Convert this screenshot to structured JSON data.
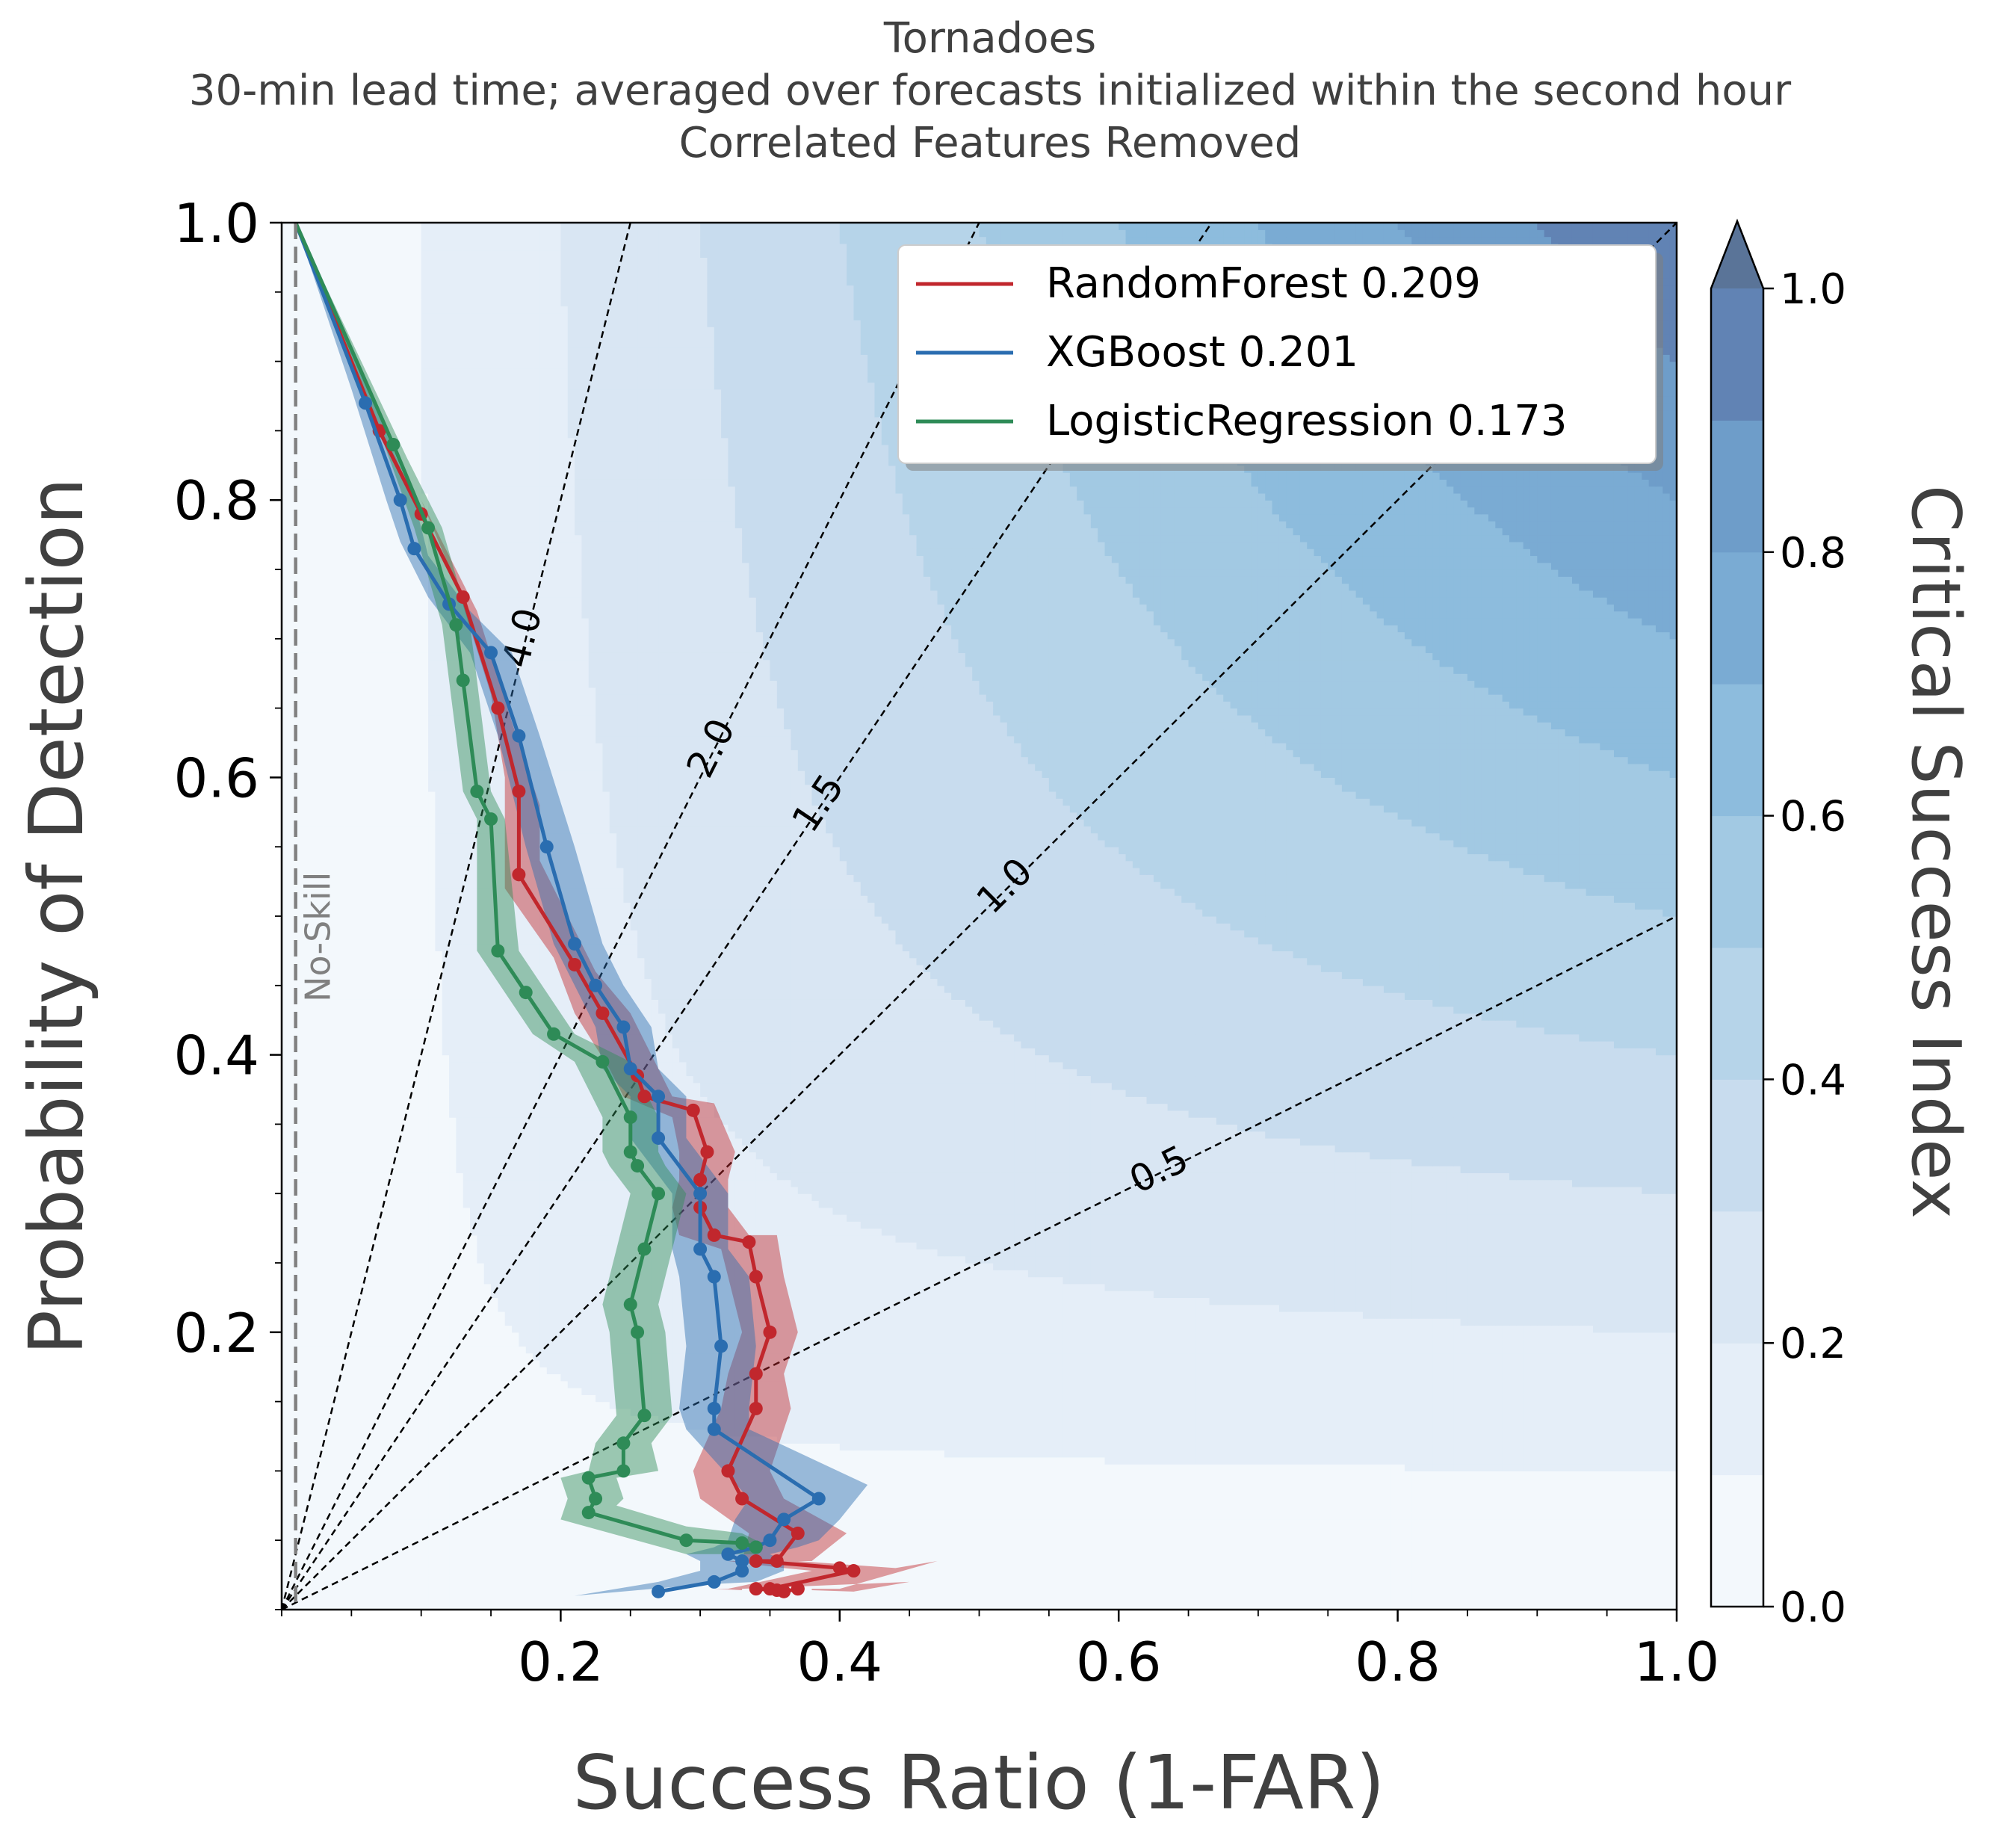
{
  "chart_data": {
    "type": "line",
    "title": "Tornadoes",
    "subtitle": "30-min lead time; averaged over forecasts initialized within the second hour",
    "subtitle2": "Correlated Features Removed",
    "xlabel": "Success Ratio (1-FAR)",
    "ylabel": "Probability of Detection",
    "xlim": [
      0,
      1
    ],
    "ylim": [
      0,
      1
    ],
    "x_ticks": [
      "0.2",
      "0.4",
      "0.6",
      "0.8",
      "1.0"
    ],
    "y_ticks": [
      "0.2",
      "0.4",
      "0.6",
      "0.8",
      "1.0"
    ],
    "colorbar": {
      "label": "Critical Success Index",
      "ticks": [
        "0.0",
        "0.2",
        "0.4",
        "0.6",
        "0.8",
        "1.0"
      ],
      "levels": [
        0,
        0.1,
        0.2,
        0.3,
        0.4,
        0.5,
        0.6,
        0.7,
        0.8,
        0.9,
        1.0
      ],
      "colors": [
        "#f3f8fc",
        "#e5eef8",
        "#d9e6f3",
        "#c8dcee",
        "#b6d4e9",
        "#a2c9e3",
        "#8dbcdd",
        "#7aabd3",
        "#6e9dc9",
        "#6183b4"
      ],
      "extend": "max"
    },
    "frequency_bias_lines": [
      {
        "label": "4.0",
        "value": 4.0
      },
      {
        "label": "2.0",
        "value": 2.0
      },
      {
        "label": "1.5",
        "value": 1.5
      },
      {
        "label": "1.0",
        "value": 1.0
      },
      {
        "label": "0.5",
        "value": 0.5
      }
    ],
    "no_skill": {
      "label": "No-Skill",
      "x": 0.01
    },
    "legend": {
      "position": "top-right"
    },
    "series": [
      {
        "name": "RandomForest 0.209",
        "color": "#c1272d",
        "band_color": "#c1272d",
        "points": [
          [
            0.01,
            1.0
          ],
          [
            0.07,
            0.85
          ],
          [
            0.1,
            0.79
          ],
          [
            0.13,
            0.73
          ],
          [
            0.155,
            0.65
          ],
          [
            0.17,
            0.59
          ],
          [
            0.17,
            0.53
          ],
          [
            0.21,
            0.465
          ],
          [
            0.23,
            0.43
          ],
          [
            0.255,
            0.385
          ],
          [
            0.26,
            0.37
          ],
          [
            0.295,
            0.36
          ],
          [
            0.305,
            0.33
          ],
          [
            0.3,
            0.31
          ],
          [
            0.3,
            0.29
          ],
          [
            0.31,
            0.27
          ],
          [
            0.335,
            0.265
          ],
          [
            0.34,
            0.24
          ],
          [
            0.35,
            0.2
          ],
          [
            0.34,
            0.17
          ],
          [
            0.34,
            0.145
          ],
          [
            0.32,
            0.1
          ],
          [
            0.33,
            0.08
          ],
          [
            0.37,
            0.055
          ],
          [
            0.355,
            0.035
          ],
          [
            0.34,
            0.035
          ],
          [
            0.4,
            0.03
          ],
          [
            0.41,
            0.028
          ],
          [
            0.35,
            0.015
          ],
          [
            0.34,
            0.015
          ],
          [
            0.355,
            0.014
          ],
          [
            0.36,
            0.013
          ],
          [
            0.37,
            0.015
          ],
          [
            0.37,
            0.015
          ]
        ],
        "band_lower": [
          [
            0.01,
            1.0
          ],
          [
            0.07,
            0.86
          ],
          [
            0.1,
            0.8
          ],
          [
            0.125,
            0.74
          ],
          [
            0.15,
            0.66
          ],
          [
            0.16,
            0.6
          ],
          [
            0.16,
            0.52
          ],
          [
            0.195,
            0.47
          ],
          [
            0.21,
            0.43
          ],
          [
            0.235,
            0.39
          ],
          [
            0.245,
            0.37
          ],
          [
            0.28,
            0.355
          ],
          [
            0.285,
            0.33
          ],
          [
            0.285,
            0.31
          ],
          [
            0.28,
            0.29
          ],
          [
            0.285,
            0.27
          ],
          [
            0.315,
            0.26
          ],
          [
            0.32,
            0.24
          ],
          [
            0.33,
            0.2
          ],
          [
            0.32,
            0.17
          ],
          [
            0.315,
            0.145
          ],
          [
            0.295,
            0.1
          ],
          [
            0.3,
            0.08
          ],
          [
            0.335,
            0.055
          ],
          [
            0.33,
            0.035
          ],
          [
            0.32,
            0.035
          ],
          [
            0.36,
            0.03
          ],
          [
            0.38,
            0.028
          ],
          [
            0.32,
            0.015
          ],
          [
            0.31,
            0.015
          ],
          [
            0.33,
            0.014
          ],
          [
            0.33,
            0.013
          ],
          [
            0.33,
            0.015
          ],
          [
            0.33,
            0.015
          ]
        ],
        "band_upper": [
          [
            0.01,
            1.0
          ],
          [
            0.08,
            0.84
          ],
          [
            0.11,
            0.78
          ],
          [
            0.14,
            0.72
          ],
          [
            0.165,
            0.64
          ],
          [
            0.185,
            0.58
          ],
          [
            0.185,
            0.54
          ],
          [
            0.225,
            0.46
          ],
          [
            0.25,
            0.43
          ],
          [
            0.275,
            0.38
          ],
          [
            0.28,
            0.37
          ],
          [
            0.31,
            0.365
          ],
          [
            0.325,
            0.33
          ],
          [
            0.32,
            0.31
          ],
          [
            0.32,
            0.29
          ],
          [
            0.335,
            0.27
          ],
          [
            0.355,
            0.27
          ],
          [
            0.36,
            0.24
          ],
          [
            0.37,
            0.2
          ],
          [
            0.36,
            0.17
          ],
          [
            0.365,
            0.145
          ],
          [
            0.35,
            0.1
          ],
          [
            0.36,
            0.08
          ],
          [
            0.405,
            0.055
          ],
          [
            0.38,
            0.035
          ],
          [
            0.37,
            0.035
          ],
          [
            0.44,
            0.03
          ],
          [
            0.47,
            0.035
          ],
          [
            0.4,
            0.015
          ],
          [
            0.38,
            0.015
          ],
          [
            0.38,
            0.014
          ],
          [
            0.41,
            0.013
          ],
          [
            0.45,
            0.02
          ],
          [
            0.45,
            0.02
          ]
        ]
      },
      {
        "name": "XGBoost 0.201",
        "color": "#2a6db0",
        "band_color": "#2a6db0",
        "points": [
          [
            0.01,
            1.0
          ],
          [
            0.06,
            0.87
          ],
          [
            0.085,
            0.8
          ],
          [
            0.095,
            0.765
          ],
          [
            0.12,
            0.725
          ],
          [
            0.15,
            0.69
          ],
          [
            0.17,
            0.63
          ],
          [
            0.19,
            0.55
          ],
          [
            0.21,
            0.48
          ],
          [
            0.225,
            0.45
          ],
          [
            0.245,
            0.42
          ],
          [
            0.25,
            0.39
          ],
          [
            0.27,
            0.37
          ],
          [
            0.27,
            0.34
          ],
          [
            0.3,
            0.3
          ],
          [
            0.3,
            0.26
          ],
          [
            0.31,
            0.24
          ],
          [
            0.315,
            0.19
          ],
          [
            0.31,
            0.145
          ],
          [
            0.31,
            0.13
          ],
          [
            0.385,
            0.08
          ],
          [
            0.36,
            0.065
          ],
          [
            0.35,
            0.05
          ],
          [
            0.34,
            0.045
          ],
          [
            0.32,
            0.04
          ],
          [
            0.33,
            0.035
          ],
          [
            0.33,
            0.028
          ],
          [
            0.31,
            0.02
          ],
          [
            0.27,
            0.013
          ]
        ],
        "band_lower": [
          [
            0.01,
            1.0
          ],
          [
            0.05,
            0.88
          ],
          [
            0.075,
            0.8
          ],
          [
            0.085,
            0.77
          ],
          [
            0.105,
            0.73
          ],
          [
            0.135,
            0.69
          ],
          [
            0.155,
            0.63
          ],
          [
            0.175,
            0.55
          ],
          [
            0.195,
            0.48
          ],
          [
            0.21,
            0.45
          ],
          [
            0.225,
            0.42
          ],
          [
            0.23,
            0.39
          ],
          [
            0.25,
            0.37
          ],
          [
            0.25,
            0.34
          ],
          [
            0.28,
            0.3
          ],
          [
            0.28,
            0.26
          ],
          [
            0.285,
            0.24
          ],
          [
            0.29,
            0.19
          ],
          [
            0.285,
            0.145
          ],
          [
            0.29,
            0.13
          ],
          [
            0.335,
            0.08
          ],
          [
            0.325,
            0.065
          ],
          [
            0.32,
            0.05
          ],
          [
            0.31,
            0.045
          ],
          [
            0.29,
            0.04
          ],
          [
            0.3,
            0.035
          ],
          [
            0.3,
            0.028
          ],
          [
            0.27,
            0.02
          ],
          [
            0.21,
            0.01
          ]
        ],
        "band_upper": [
          [
            0.01,
            1.0
          ],
          [
            0.07,
            0.86
          ],
          [
            0.095,
            0.8
          ],
          [
            0.105,
            0.76
          ],
          [
            0.135,
            0.72
          ],
          [
            0.165,
            0.69
          ],
          [
            0.185,
            0.63
          ],
          [
            0.21,
            0.55
          ],
          [
            0.23,
            0.48
          ],
          [
            0.245,
            0.45
          ],
          [
            0.265,
            0.42
          ],
          [
            0.27,
            0.39
          ],
          [
            0.29,
            0.37
          ],
          [
            0.29,
            0.34
          ],
          [
            0.32,
            0.3
          ],
          [
            0.32,
            0.26
          ],
          [
            0.335,
            0.24
          ],
          [
            0.34,
            0.19
          ],
          [
            0.335,
            0.145
          ],
          [
            0.335,
            0.13
          ],
          [
            0.42,
            0.09
          ],
          [
            0.4,
            0.065
          ],
          [
            0.385,
            0.05
          ],
          [
            0.37,
            0.045
          ],
          [
            0.35,
            0.04
          ],
          [
            0.36,
            0.035
          ],
          [
            0.36,
            0.028
          ],
          [
            0.34,
            0.02
          ],
          [
            0.3,
            0.018
          ]
        ]
      },
      {
        "name": "LogisticRegression 0.173",
        "color": "#2e8b57",
        "band_color": "#2e8b57",
        "points": [
          [
            0.01,
            1.0
          ],
          [
            0.08,
            0.84
          ],
          [
            0.105,
            0.78
          ],
          [
            0.125,
            0.71
          ],
          [
            0.13,
            0.67
          ],
          [
            0.14,
            0.59
          ],
          [
            0.15,
            0.57
          ],
          [
            0.155,
            0.475
          ],
          [
            0.175,
            0.445
          ],
          [
            0.195,
            0.415
          ],
          [
            0.23,
            0.395
          ],
          [
            0.25,
            0.355
          ],
          [
            0.25,
            0.33
          ],
          [
            0.255,
            0.32
          ],
          [
            0.27,
            0.3
          ],
          [
            0.26,
            0.26
          ],
          [
            0.25,
            0.22
          ],
          [
            0.255,
            0.2
          ],
          [
            0.26,
            0.14
          ],
          [
            0.245,
            0.12
          ],
          [
            0.245,
            0.1
          ],
          [
            0.22,
            0.095
          ],
          [
            0.225,
            0.08
          ],
          [
            0.22,
            0.07
          ],
          [
            0.29,
            0.05
          ],
          [
            0.33,
            0.048
          ],
          [
            0.34,
            0.045
          ]
        ],
        "band_lower": [
          [
            0.01,
            1.0
          ],
          [
            0.07,
            0.85
          ],
          [
            0.095,
            0.78
          ],
          [
            0.115,
            0.71
          ],
          [
            0.12,
            0.67
          ],
          [
            0.13,
            0.59
          ],
          [
            0.14,
            0.57
          ],
          [
            0.14,
            0.475
          ],
          [
            0.16,
            0.445
          ],
          [
            0.18,
            0.415
          ],
          [
            0.21,
            0.395
          ],
          [
            0.23,
            0.355
          ],
          [
            0.23,
            0.33
          ],
          [
            0.235,
            0.32
          ],
          [
            0.25,
            0.3
          ],
          [
            0.24,
            0.26
          ],
          [
            0.23,
            0.22
          ],
          [
            0.235,
            0.2
          ],
          [
            0.24,
            0.14
          ],
          [
            0.225,
            0.12
          ],
          [
            0.22,
            0.1
          ],
          [
            0.2,
            0.095
          ],
          [
            0.205,
            0.08
          ],
          [
            0.2,
            0.065
          ],
          [
            0.29,
            0.04
          ],
          [
            0.33,
            0.04
          ],
          [
            0.34,
            0.04
          ]
        ],
        "band_upper": [
          [
            0.01,
            1.0
          ],
          [
            0.09,
            0.83
          ],
          [
            0.115,
            0.78
          ],
          [
            0.135,
            0.71
          ],
          [
            0.14,
            0.67
          ],
          [
            0.15,
            0.59
          ],
          [
            0.16,
            0.57
          ],
          [
            0.17,
            0.475
          ],
          [
            0.19,
            0.445
          ],
          [
            0.21,
            0.415
          ],
          [
            0.25,
            0.395
          ],
          [
            0.27,
            0.355
          ],
          [
            0.27,
            0.33
          ],
          [
            0.275,
            0.32
          ],
          [
            0.29,
            0.3
          ],
          [
            0.28,
            0.26
          ],
          [
            0.27,
            0.22
          ],
          [
            0.275,
            0.2
          ],
          [
            0.28,
            0.14
          ],
          [
            0.265,
            0.12
          ],
          [
            0.27,
            0.1
          ],
          [
            0.24,
            0.095
          ],
          [
            0.245,
            0.08
          ],
          [
            0.24,
            0.075
          ],
          [
            0.29,
            0.06
          ],
          [
            0.33,
            0.055
          ],
          [
            0.34,
            0.05
          ]
        ]
      }
    ]
  }
}
